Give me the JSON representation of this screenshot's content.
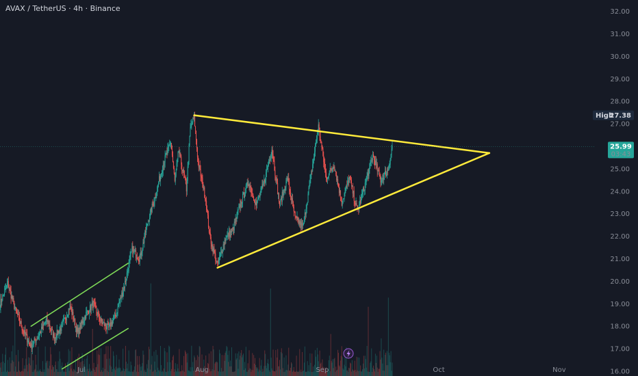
{
  "header": {
    "title": "AVAX / TetherUS · 4h · Binance"
  },
  "colors": {
    "background": "#161a25",
    "up": "#26a69a",
    "down": "#ef5350",
    "trendline": "#ffeb3b",
    "channel": "#7ed957",
    "last_price_badge": "#26a69a",
    "high_badge": "#1e2a3c"
  },
  "markers": {
    "high": {
      "label": "High",
      "value": "27.38"
    },
    "last_price": {
      "value": "25.99",
      "countdown": "03:43"
    }
  },
  "icons": {
    "bottom_badge": "lightning-icon"
  },
  "chart_data": {
    "type": "candlestick",
    "title": "AVAX / TetherUS · 4h · Binance",
    "y_axis": {
      "position": "right",
      "ticks": [
        "16.00",
        "17.00",
        "18.00",
        "19.00",
        "20.00",
        "21.00",
        "22.00",
        "23.00",
        "24.00",
        "25.00",
        "26.00",
        "27.00",
        "28.00",
        "29.00",
        "30.00",
        "31.00",
        "32.00"
      ],
      "range": [
        16,
        32.2
      ]
    },
    "x_axis": {
      "ticks": [
        {
          "label": "Jul",
          "date": "2023-07-01"
        },
        {
          "label": "Aug",
          "date": "2023-08-01"
        },
        {
          "label": "Sep",
          "date": "2023-09-01"
        },
        {
          "label": "Oct",
          "date": "2023-10-01"
        },
        {
          "label": "Nov",
          "date": "2023-11-01"
        }
      ],
      "range": [
        "2023-06-10",
        "2023-11-10"
      ]
    },
    "price_path": [
      [
        "2023-06-10",
        19.0
      ],
      [
        "2023-06-12",
        19.9
      ],
      [
        "2023-06-14",
        18.7
      ],
      [
        "2023-06-16",
        17.8
      ],
      [
        "2023-06-18",
        17.1
      ],
      [
        "2023-06-20",
        17.6
      ],
      [
        "2023-06-22",
        18.3
      ],
      [
        "2023-06-24",
        17.5
      ],
      [
        "2023-06-26",
        18.0
      ],
      [
        "2023-06-28",
        18.9
      ],
      [
        "2023-06-30",
        17.7
      ],
      [
        "2023-07-02",
        18.5
      ],
      [
        "2023-07-04",
        19.0
      ],
      [
        "2023-07-06",
        18.2
      ],
      [
        "2023-07-08",
        17.9
      ],
      [
        "2023-07-10",
        18.6
      ],
      [
        "2023-07-12",
        19.8
      ],
      [
        "2023-07-14",
        21.4
      ],
      [
        "2023-07-16",
        21.0
      ],
      [
        "2023-07-18",
        22.6
      ],
      [
        "2023-07-20",
        23.8
      ],
      [
        "2023-07-22",
        25.2
      ],
      [
        "2023-07-24",
        26.2
      ],
      [
        "2023-07-25",
        24.4
      ],
      [
        "2023-07-26",
        25.8
      ],
      [
        "2023-07-28",
        24.1
      ],
      [
        "2023-07-29",
        26.8
      ],
      [
        "2023-07-30",
        27.3
      ],
      [
        "2023-07-31",
        25.3
      ],
      [
        "2023-08-02",
        23.6
      ],
      [
        "2023-08-03",
        22.0
      ],
      [
        "2023-08-05",
        20.7
      ],
      [
        "2023-08-07",
        21.9
      ],
      [
        "2023-08-09",
        22.3
      ],
      [
        "2023-08-11",
        23.5
      ],
      [
        "2023-08-13",
        24.4
      ],
      [
        "2023-08-15",
        23.4
      ],
      [
        "2023-08-17",
        24.4
      ],
      [
        "2023-08-19",
        25.9
      ],
      [
        "2023-08-21",
        23.4
      ],
      [
        "2023-08-23",
        24.6
      ],
      [
        "2023-08-25",
        22.8
      ],
      [
        "2023-08-27",
        22.4
      ],
      [
        "2023-08-29",
        24.6
      ],
      [
        "2023-08-31",
        26.9
      ],
      [
        "2023-09-02",
        24.6
      ],
      [
        "2023-09-04",
        25.2
      ],
      [
        "2023-09-06",
        23.5
      ],
      [
        "2023-09-08",
        24.6
      ],
      [
        "2023-09-10",
        23.1
      ],
      [
        "2023-09-12",
        24.3
      ],
      [
        "2023-09-14",
        25.6
      ],
      [
        "2023-09-16",
        24.5
      ],
      [
        "2023-09-18",
        25.0
      ],
      [
        "2023-09-19",
        25.99
      ]
    ],
    "annotations": [
      {
        "kind": "trendline",
        "from": [
          "2023-07-30",
          27.38
        ],
        "to": [
          "2023-10-14",
          25.7
        ]
      },
      {
        "kind": "trendline",
        "from": [
          "2023-08-05",
          20.6
        ],
        "to": [
          "2023-10-14",
          25.7
        ]
      },
      {
        "kind": "channel-line",
        "from": [
          "2023-06-18",
          18.0
        ],
        "to": [
          "2023-07-13",
          20.8
        ]
      },
      {
        "kind": "channel-line",
        "from": [
          "2023-06-26",
          16.1
        ],
        "to": [
          "2023-07-13",
          17.9
        ]
      }
    ],
    "volume": {
      "shown": true,
      "position": "bottom overlay"
    },
    "grid": false
  }
}
